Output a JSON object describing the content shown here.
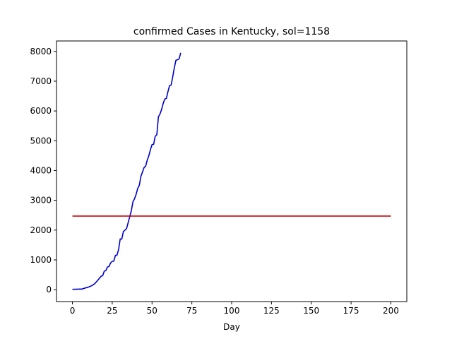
{
  "chart_data": {
    "type": "line",
    "title": "confirmed Cases in Kentucky, sol=1158",
    "xlabel": "Day",
    "ylabel": "",
    "xlim": [
      -10,
      210
    ],
    "ylim": [
      -400,
      8350
    ],
    "xticks": [
      0,
      25,
      50,
      75,
      100,
      125,
      150,
      175,
      200
    ],
    "yticks": [
      0,
      1000,
      2000,
      3000,
      4000,
      5000,
      6000,
      7000,
      8000
    ],
    "grid": false,
    "series": [
      {
        "color": "#0000cc",
        "x": [
          0,
          5,
          6,
          8,
          10,
          12,
          14,
          16,
          18,
          19,
          20,
          21,
          22,
          23,
          24,
          25,
          26,
          27,
          28,
          29,
          30,
          31,
          32,
          33,
          34,
          35,
          36,
          37,
          38,
          39,
          40,
          41,
          42,
          43,
          44,
          45,
          46,
          47,
          48,
          49,
          50,
          51,
          52,
          53,
          54,
          55,
          56,
          57,
          58,
          59,
          60,
          61,
          62,
          63,
          64,
          65,
          66,
          67,
          68
        ],
        "y": [
          10,
          20,
          20,
          55,
          85,
          130,
          200,
          320,
          450,
          470,
          620,
          640,
          760,
          780,
          900,
          950,
          960,
          1150,
          1160,
          1350,
          1700,
          1700,
          1950,
          2000,
          2050,
          2250,
          2450,
          2650,
          2950,
          3050,
          3200,
          3400,
          3500,
          3800,
          3950,
          4100,
          4150,
          4350,
          4500,
          4700,
          4870,
          4880,
          5150,
          5200,
          5800,
          5900,
          6050,
          6250,
          6400,
          6420,
          6650,
          6850,
          6870,
          7150,
          7450,
          7700,
          7720,
          7750,
          7950
        ]
      },
      {
        "color": "#cc0000",
        "x": [
          0,
          200
        ],
        "y": [
          2470,
          2470
        ]
      }
    ]
  }
}
